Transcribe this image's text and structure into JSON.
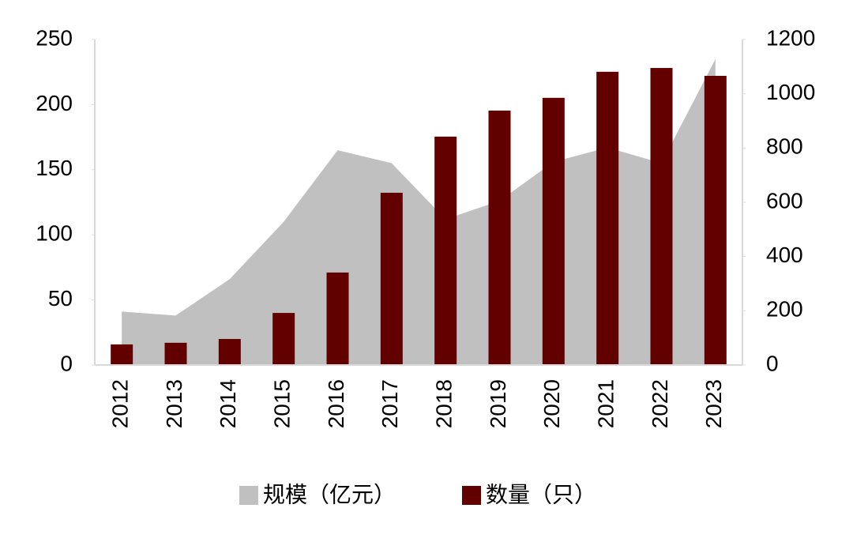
{
  "chart_data": {
    "type": "bar",
    "categories": [
      "2012",
      "2013",
      "2014",
      "2015",
      "2016",
      "2017",
      "2018",
      "2019",
      "2020",
      "2021",
      "2022",
      "2023"
    ],
    "series": [
      {
        "name": "规模（亿元）",
        "type": "area",
        "color": "#c0c0c0",
        "axis": "y",
        "values": [
          41,
          38,
          66,
          110,
          165,
          155,
          112,
          126,
          156,
          167,
          155,
          235
        ]
      },
      {
        "name": "数量（只）",
        "type": "bar",
        "color": "#620000",
        "axis": "y2",
        "values": [
          76,
          82,
          96,
          192,
          341,
          635,
          842,
          938,
          985,
          1081,
          1095,
          1066
        ]
      }
    ],
    "ylim": [
      0,
      250
    ],
    "yticks": [
      0,
      50,
      100,
      150,
      200,
      250
    ],
    "y2lim": [
      0,
      1200
    ],
    "y2ticks": [
      0,
      200,
      400,
      600,
      800,
      1000,
      1200
    ],
    "legend": "bottom"
  }
}
